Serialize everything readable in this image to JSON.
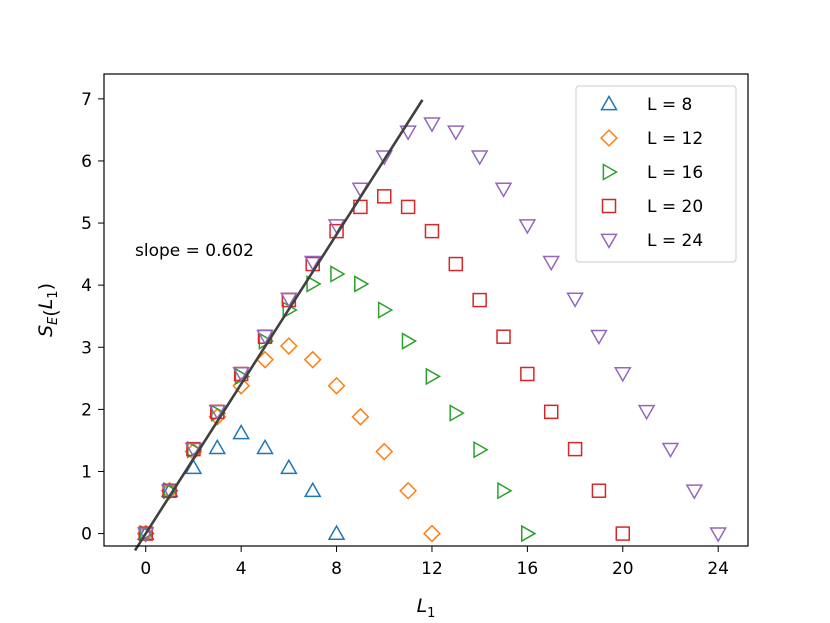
{
  "chart_data": {
    "type": "scatter",
    "xlabel": "L₁",
    "ylabel": "S_E(L₁)",
    "xlim": [
      -1.75,
      25.25
    ],
    "ylim": [
      -0.2,
      7.4
    ],
    "xticks": [
      0,
      4,
      8,
      12,
      16,
      20,
      24
    ],
    "yticks": [
      0,
      1,
      2,
      3,
      4,
      5,
      6,
      7
    ],
    "grid": false,
    "legend_position": "top-right",
    "series": [
      {
        "name": "L = 8",
        "marker": "triangle-up",
        "color": "#1f77b4",
        "x": [
          0,
          1,
          2,
          3,
          4,
          5,
          6,
          7,
          8
        ],
        "y": [
          0.0,
          0.69,
          1.06,
          1.38,
          1.62,
          1.38,
          1.06,
          0.69,
          0.0
        ]
      },
      {
        "name": "L = 12",
        "marker": "diamond",
        "color": "#ff7f0e",
        "x": [
          0,
          1,
          2,
          3,
          4,
          5,
          6,
          7,
          8,
          9,
          10,
          11,
          12
        ],
        "y": [
          0.0,
          0.69,
          1.32,
          1.88,
          2.38,
          2.8,
          3.02,
          2.8,
          2.38,
          1.88,
          1.32,
          0.69,
          0.0
        ]
      },
      {
        "name": "L = 16",
        "marker": "triangle-right",
        "color": "#2ca02c",
        "x": [
          0,
          1,
          2,
          3,
          4,
          5,
          6,
          7,
          8,
          9,
          10,
          11,
          12,
          13,
          14,
          15,
          16
        ],
        "y": [
          0.0,
          0.69,
          1.35,
          1.94,
          2.53,
          3.1,
          3.6,
          4.02,
          4.18,
          4.02,
          3.6,
          3.1,
          2.53,
          1.94,
          1.35,
          0.69,
          0.0
        ]
      },
      {
        "name": "L = 20",
        "marker": "square",
        "color": "#d62728",
        "x": [
          0,
          1,
          2,
          3,
          4,
          5,
          6,
          7,
          8,
          9,
          10,
          11,
          12,
          13,
          14,
          15,
          16,
          17,
          18,
          19,
          20
        ],
        "y": [
          0.0,
          0.69,
          1.36,
          1.96,
          2.57,
          3.17,
          3.76,
          4.34,
          4.87,
          5.26,
          5.43,
          5.26,
          4.87,
          4.34,
          3.76,
          3.17,
          2.57,
          1.96,
          1.36,
          0.69,
          0.0
        ]
      },
      {
        "name": "L = 24",
        "marker": "triangle-down",
        "color": "#9467bd",
        "x": [
          0,
          1,
          2,
          3,
          4,
          5,
          6,
          7,
          8,
          9,
          10,
          11,
          12,
          13,
          14,
          15,
          16,
          17,
          18,
          19,
          20,
          21,
          22,
          23,
          24
        ],
        "y": [
          0.0,
          0.69,
          1.36,
          1.97,
          2.58,
          3.18,
          3.78,
          4.37,
          4.96,
          5.55,
          6.07,
          6.47,
          6.6,
          6.47,
          6.07,
          5.55,
          4.96,
          4.37,
          3.78,
          3.18,
          2.58,
          1.97,
          1.36,
          0.69,
          0.0
        ]
      }
    ],
    "fit_line": {
      "slope": 0.602,
      "intercept": 0.0,
      "x_range": [
        -0.45,
        11.6
      ],
      "color": "#404040",
      "label": "slope = 0.602"
    }
  }
}
